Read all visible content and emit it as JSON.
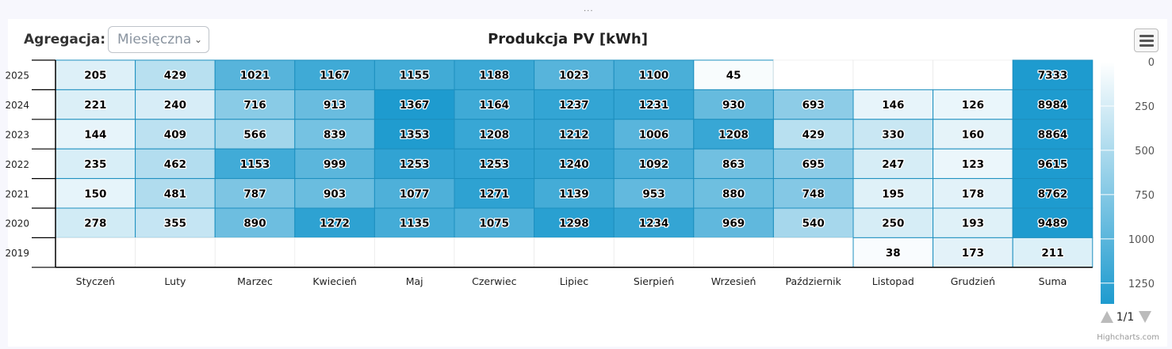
{
  "toolbar": {
    "aggregation_label": "Agregacja:",
    "aggregation_value": "Miesięczna",
    "handle": "..."
  },
  "colors": {
    "min": "#ffffff",
    "max": "#1e9bcf",
    "border": "#1d8fbf"
  },
  "legend": {
    "ticks": [
      "0",
      "250",
      "500",
      "750",
      "1000",
      "1250"
    ],
    "page_indicator": "1/1"
  },
  "credits": "Highcharts.com",
  "chart_data": {
    "type": "heatmap",
    "title": "Produkcja PV [kWh]",
    "xlabel": "",
    "ylabel": "",
    "categories": [
      "Styczeń",
      "Luty",
      "Marzec",
      "Kwiecień",
      "Maj",
      "Czerwiec",
      "Lipiec",
      "Sierpień",
      "Wrzesień",
      "Październik",
      "Listopad",
      "Grudzień",
      "Suma"
    ],
    "years": [
      "2025",
      "2024",
      "2023",
      "2022",
      "2021",
      "2020",
      "2019"
    ],
    "values": [
      [
        205,
        429,
        1021,
        1167,
        1155,
        1188,
        1023,
        1100,
        45,
        null,
        null,
        null,
        7333
      ],
      [
        221,
        240,
        716,
        913,
        1367,
        1164,
        1237,
        1231,
        930,
        693,
        146,
        126,
        8984
      ],
      [
        144,
        409,
        566,
        839,
        1353,
        1208,
        1212,
        1006,
        1208,
        429,
        330,
        160,
        8864
      ],
      [
        235,
        462,
        1153,
        999,
        1253,
        1253,
        1240,
        1092,
        863,
        695,
        247,
        123,
        9615
      ],
      [
        150,
        481,
        787,
        903,
        1077,
        1271,
        1139,
        953,
        880,
        748,
        195,
        178,
        8762
      ],
      [
        278,
        355,
        890,
        1272,
        1135,
        1075,
        1298,
        1234,
        969,
        540,
        250,
        193,
        9489
      ],
      [
        null,
        null,
        null,
        null,
        null,
        null,
        null,
        null,
        null,
        null,
        38,
        173,
        211
      ]
    ],
    "color_axis": {
      "min": 0,
      "max": 1367
    },
    "legend_position": "right"
  }
}
